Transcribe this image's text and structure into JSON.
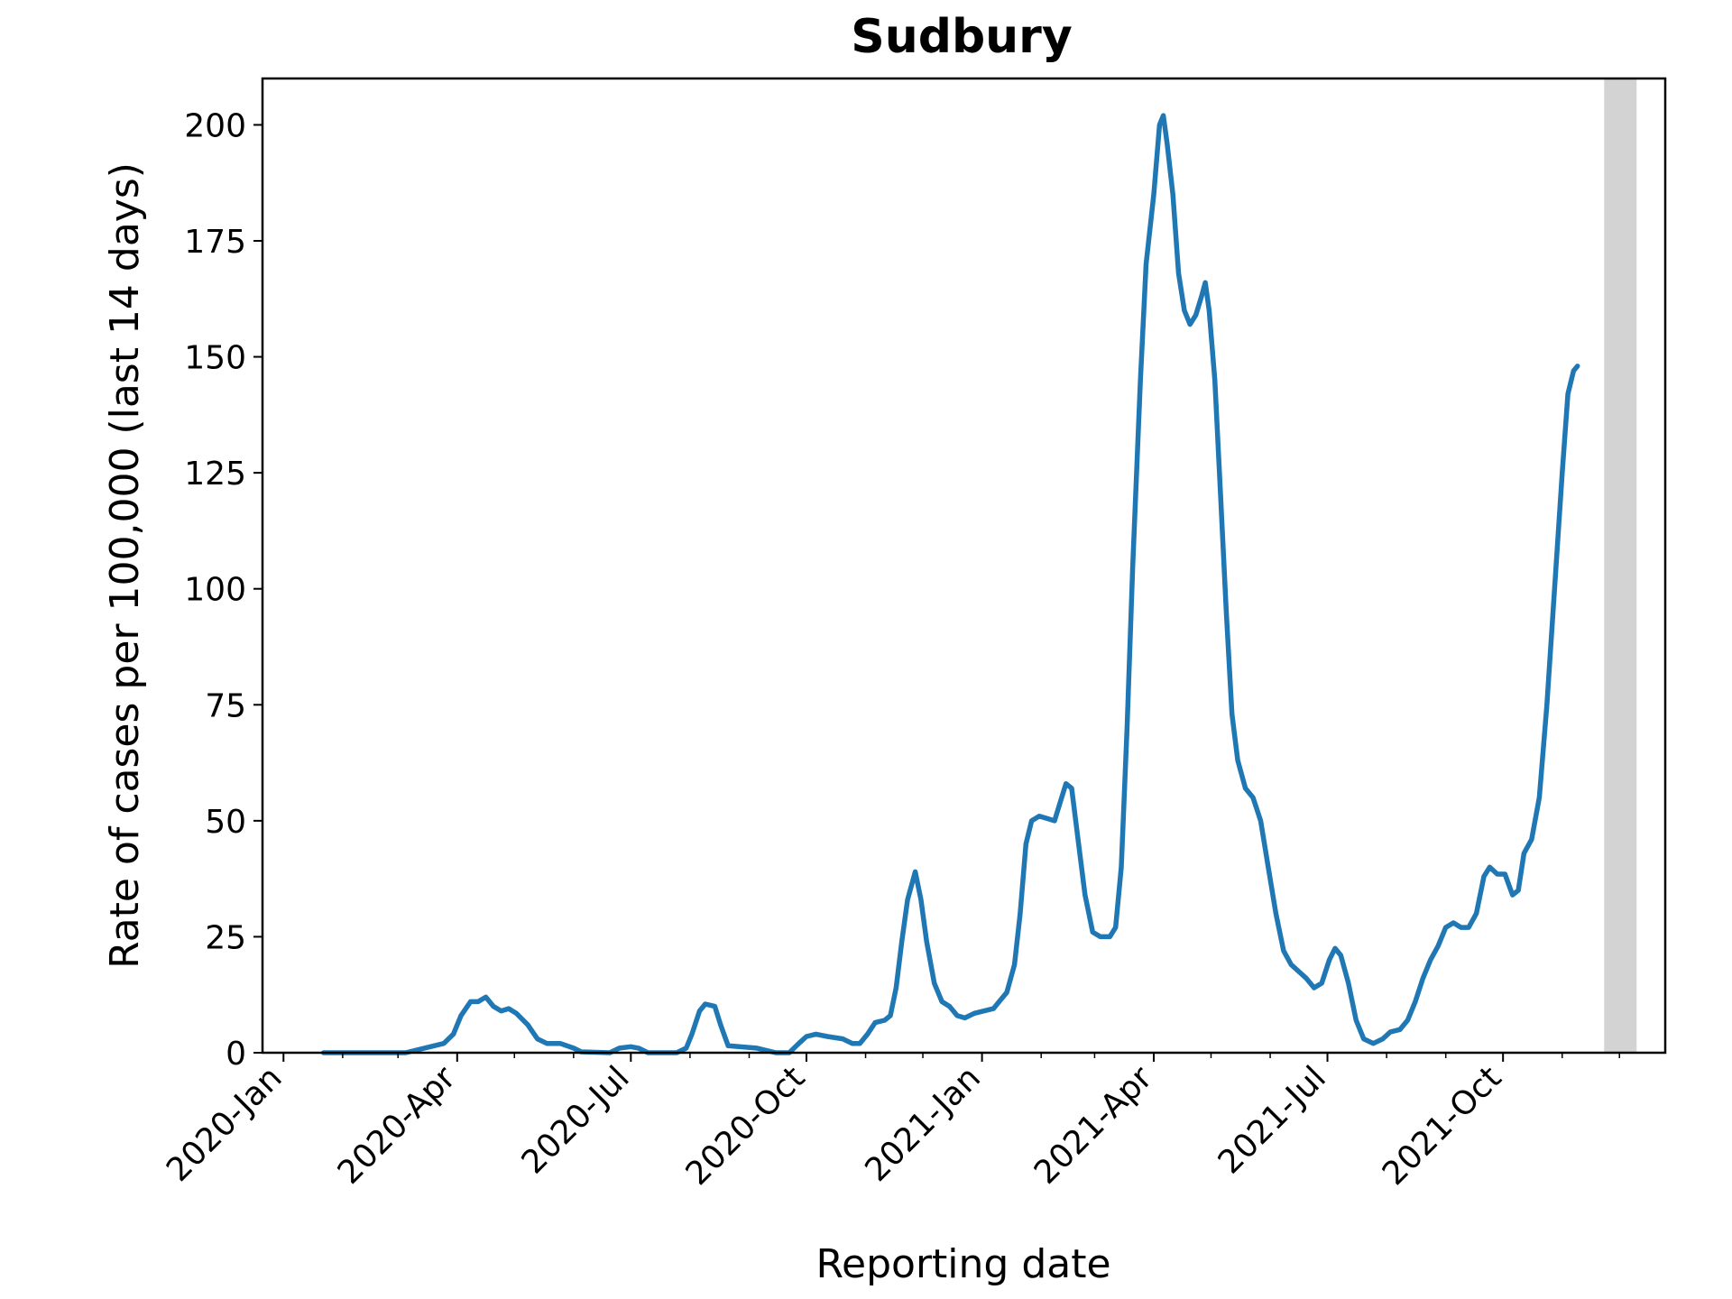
{
  "chart_data": {
    "type": "line",
    "title": "Sudbury",
    "xlabel": "Reporting date",
    "ylabel": "Rate of cases per 100,000 (last 14 days)",
    "xlim": [
      "2019-12-21",
      "2021-12-25"
    ],
    "ylim": [
      0,
      210
    ],
    "yticks": [
      0,
      25,
      50,
      75,
      100,
      125,
      150,
      175,
      200
    ],
    "xticks": [
      {
        "date": "2020-01-01",
        "label": "2020-Jan"
      },
      {
        "date": "2020-04-01",
        "label": "2020-Apr"
      },
      {
        "date": "2020-07-01",
        "label": "2020-Jul"
      },
      {
        "date": "2020-10-01",
        "label": "2020-Oct"
      },
      {
        "date": "2021-01-01",
        "label": "2021-Jan"
      },
      {
        "date": "2021-04-01",
        "label": "2021-Apr"
      },
      {
        "date": "2021-07-01",
        "label": "2021-Jul"
      },
      {
        "date": "2021-10-01",
        "label": "2021-Oct"
      }
    ],
    "minor_xticks": [
      "2020-02-01",
      "2020-03-01",
      "2020-05-01",
      "2020-06-01",
      "2020-08-01",
      "2020-09-01",
      "2020-11-01",
      "2020-12-01",
      "2021-02-01",
      "2021-03-01",
      "2021-05-01",
      "2021-06-01",
      "2021-08-01",
      "2021-09-01",
      "2021-11-01",
      "2021-12-01"
    ],
    "shaded_region": {
      "start": "2021-11-23",
      "end": "2021-12-10",
      "color": "#d3d3d3"
    },
    "grid": false,
    "series": [
      {
        "color": "#1f77b4",
        "points": [
          [
            "2020-01-22",
            0
          ],
          [
            "2020-03-05",
            0
          ],
          [
            "2020-03-25",
            2
          ],
          [
            "2020-03-30",
            4
          ],
          [
            "2020-04-03",
            8
          ],
          [
            "2020-04-08",
            11
          ],
          [
            "2020-04-12",
            11
          ],
          [
            "2020-04-16",
            12
          ],
          [
            "2020-04-20",
            10
          ],
          [
            "2020-04-24",
            9
          ],
          [
            "2020-04-28",
            9.5
          ],
          [
            "2020-05-02",
            8.5
          ],
          [
            "2020-05-08",
            6
          ],
          [
            "2020-05-13",
            3
          ],
          [
            "2020-05-18",
            2
          ],
          [
            "2020-05-25",
            2
          ],
          [
            "2020-06-01",
            1
          ],
          [
            "2020-06-05",
            0.2
          ],
          [
            "2020-06-20",
            0
          ],
          [
            "2020-06-25",
            1
          ],
          [
            "2020-07-01",
            1.3
          ],
          [
            "2020-07-05",
            1
          ],
          [
            "2020-07-10",
            0
          ],
          [
            "2020-07-25",
            0
          ],
          [
            "2020-07-30",
            1
          ],
          [
            "2020-08-02",
            4
          ],
          [
            "2020-08-06",
            9
          ],
          [
            "2020-08-09",
            10.5
          ],
          [
            "2020-08-14",
            10
          ],
          [
            "2020-08-17",
            6
          ],
          [
            "2020-08-21",
            1.5
          ],
          [
            "2020-09-05",
            1
          ],
          [
            "2020-09-15",
            0
          ],
          [
            "2020-09-22",
            0
          ],
          [
            "2020-09-27",
            2
          ],
          [
            "2020-10-01",
            3.5
          ],
          [
            "2020-10-06",
            4
          ],
          [
            "2020-10-12",
            3.5
          ],
          [
            "2020-10-20",
            3
          ],
          [
            "2020-10-25",
            2
          ],
          [
            "2020-10-29",
            2
          ],
          [
            "2020-11-02",
            4
          ],
          [
            "2020-11-06",
            6.5
          ],
          [
            "2020-11-11",
            7
          ],
          [
            "2020-11-14",
            8
          ],
          [
            "2020-11-17",
            14
          ],
          [
            "2020-11-20",
            24
          ],
          [
            "2020-11-23",
            33
          ],
          [
            "2020-11-27",
            39
          ],
          [
            "2020-11-30",
            33
          ],
          [
            "2020-12-03",
            24
          ],
          [
            "2020-12-07",
            15
          ],
          [
            "2020-12-11",
            11
          ],
          [
            "2020-12-15",
            10
          ],
          [
            "2020-12-19",
            8
          ],
          [
            "2020-12-23",
            7.5
          ],
          [
            "2020-12-28",
            8.5
          ],
          [
            "2021-01-02",
            9
          ],
          [
            "2021-01-07",
            9.5
          ],
          [
            "2021-01-10",
            11
          ],
          [
            "2021-01-14",
            13
          ],
          [
            "2021-01-18",
            19
          ],
          [
            "2021-01-21",
            30
          ],
          [
            "2021-01-24",
            45
          ],
          [
            "2021-01-27",
            50
          ],
          [
            "2021-01-31",
            51
          ],
          [
            "2021-02-04",
            50.5
          ],
          [
            "2021-02-08",
            50
          ],
          [
            "2021-02-11",
            54
          ],
          [
            "2021-02-14",
            58
          ],
          [
            "2021-02-17",
            57
          ],
          [
            "2021-02-20",
            47
          ],
          [
            "2021-02-24",
            34
          ],
          [
            "2021-02-28",
            26
          ],
          [
            "2021-03-04",
            25
          ],
          [
            "2021-03-09",
            25
          ],
          [
            "2021-03-12",
            27
          ],
          [
            "2021-03-15",
            40
          ],
          [
            "2021-03-18",
            70
          ],
          [
            "2021-03-21",
            105
          ],
          [
            "2021-03-25",
            145
          ],
          [
            "2021-03-28",
            170
          ],
          [
            "2021-04-01",
            185
          ],
          [
            "2021-04-04",
            200
          ],
          [
            "2021-04-06",
            202
          ],
          [
            "2021-04-08",
            196
          ],
          [
            "2021-04-11",
            185
          ],
          [
            "2021-04-14",
            168
          ],
          [
            "2021-04-17",
            160
          ],
          [
            "2021-04-20",
            157
          ],
          [
            "2021-04-23",
            159
          ],
          [
            "2021-04-26",
            163
          ],
          [
            "2021-04-28",
            166
          ],
          [
            "2021-04-30",
            160
          ],
          [
            "2021-05-03",
            145
          ],
          [
            "2021-05-06",
            120
          ],
          [
            "2021-05-09",
            95
          ],
          [
            "2021-05-12",
            73
          ],
          [
            "2021-05-15",
            63
          ],
          [
            "2021-05-19",
            57
          ],
          [
            "2021-05-23",
            55
          ],
          [
            "2021-05-27",
            50
          ],
          [
            "2021-05-31",
            40
          ],
          [
            "2021-06-04",
            30
          ],
          [
            "2021-06-08",
            22
          ],
          [
            "2021-06-12",
            19
          ],
          [
            "2021-06-16",
            17.5
          ],
          [
            "2021-06-20",
            16
          ],
          [
            "2021-06-24",
            14
          ],
          [
            "2021-06-28",
            15
          ],
          [
            "2021-07-02",
            20
          ],
          [
            "2021-07-05",
            22.5
          ],
          [
            "2021-07-08",
            21
          ],
          [
            "2021-07-12",
            15
          ],
          [
            "2021-07-16",
            7
          ],
          [
            "2021-07-20",
            3
          ],
          [
            "2021-07-25",
            2
          ],
          [
            "2021-07-30",
            3
          ],
          [
            "2021-08-03",
            4.5
          ],
          [
            "2021-08-08",
            5
          ],
          [
            "2021-08-12",
            7
          ],
          [
            "2021-08-16",
            11
          ],
          [
            "2021-08-20",
            16
          ],
          [
            "2021-08-24",
            20
          ],
          [
            "2021-08-28",
            23
          ],
          [
            "2021-09-01",
            27
          ],
          [
            "2021-09-05",
            28
          ],
          [
            "2021-09-09",
            27
          ],
          [
            "2021-09-13",
            27
          ],
          [
            "2021-09-17",
            30
          ],
          [
            "2021-09-21",
            38
          ],
          [
            "2021-09-24",
            40
          ],
          [
            "2021-09-28",
            38.5
          ],
          [
            "2021-10-02",
            38.5
          ],
          [
            "2021-10-06",
            34
          ],
          [
            "2021-10-09",
            35
          ],
          [
            "2021-10-12",
            43
          ],
          [
            "2021-10-16",
            46
          ],
          [
            "2021-10-20",
            55
          ],
          [
            "2021-10-24",
            75
          ],
          [
            "2021-10-28",
            100
          ],
          [
            "2021-11-01",
            125
          ],
          [
            "2021-11-04",
            142
          ],
          [
            "2021-11-07",
            147
          ],
          [
            "2021-11-09",
            148
          ]
        ]
      }
    ]
  }
}
